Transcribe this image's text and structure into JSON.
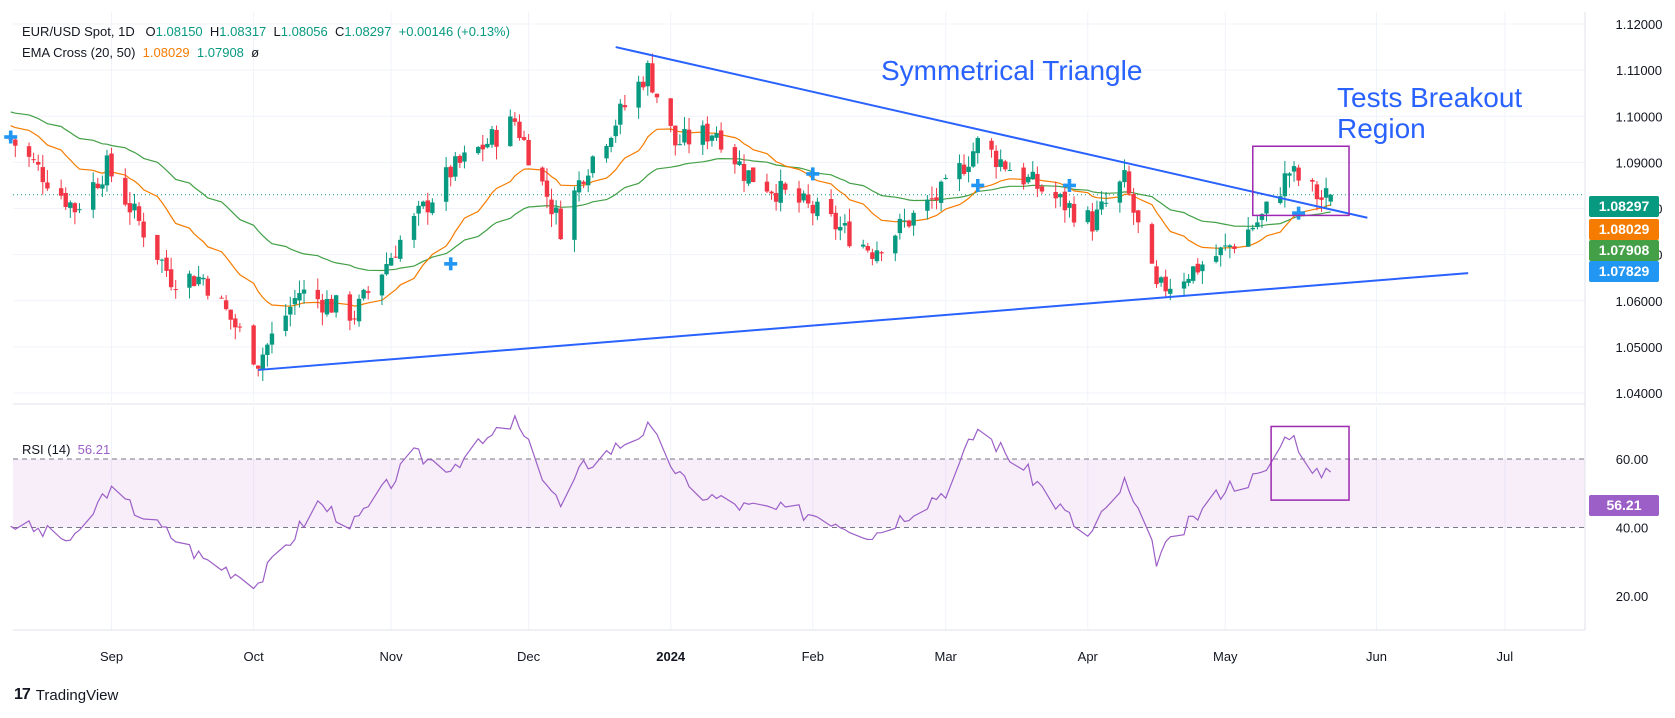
{
  "legend": {
    "title": "EUR/USD Spot, 1D",
    "o_label": "O",
    "o_value": "1.08150",
    "h_label": "H",
    "h_value": "1.08317",
    "l_label": "L",
    "l_value": "1.08056",
    "c_label": "C",
    "c_value": "1.08297",
    "change": "+0.00146 (+0.13%)",
    "ema_label": "EMA Cross (20, 50)",
    "ema20_value": "1.08029",
    "ema50_value": "1.07908",
    "ema_extra": "ø",
    "rsi_label": "RSI (14)",
    "rsi_value": "56.21"
  },
  "annotations": {
    "symmetrical_triangle": "Symmetrical Triangle",
    "breakout_line1": "Tests Breakout",
    "breakout_line2": "Region"
  },
  "price_tags": {
    "close": "1.08297",
    "ema20": "1.08029",
    "ema50": "1.07908",
    "other": "1.07829",
    "rsi": "56.21"
  },
  "colors": {
    "bull": "#089981",
    "bear": "#f23645",
    "ema20": "#f57c00",
    "ema50": "#43a047",
    "trendline": "#2962ff",
    "rsi": "#9c5fc7",
    "box": "#9c27b0",
    "tag_blue": "#2196f3"
  },
  "footer": {
    "logo": "17",
    "brand": "TradingView"
  },
  "chart_data": [
    {
      "type": "candlestick",
      "title": "EUR/USD Spot, 1D",
      "ylim": [
        1.036,
        1.121
      ],
      "y_ticks": [
        "1.12000",
        "1.11000",
        "1.10000",
        "1.09000",
        "1.08000",
        "1.07000",
        "1.06000",
        "1.05000",
        "1.04000"
      ],
      "x_ticks": [
        "Sep",
        "Oct",
        "Nov",
        "Dec",
        "2024",
        "Feb",
        "Mar",
        "Apr",
        "May",
        "Jun",
        "Jul"
      ],
      "close_key_points": [
        [
          "2023-08-10",
          1.095
        ],
        [
          "2023-08-24",
          1.08
        ],
        [
          "2023-08-31",
          1.089
        ],
        [
          "2023-09-14",
          1.065
        ],
        [
          "2023-09-21",
          1.065
        ],
        [
          "2023-10-03",
          1.047
        ],
        [
          "2023-10-12",
          1.062
        ],
        [
          "2023-10-24",
          1.057
        ],
        [
          "2023-11-03",
          1.073
        ],
        [
          "2023-11-14",
          1.088
        ],
        [
          "2023-11-28",
          1.099
        ],
        [
          "2023-12-08",
          1.076
        ],
        [
          "2023-12-13",
          1.088
        ],
        [
          "2023-12-27",
          1.11
        ],
        [
          "2024-01-02",
          1.094
        ],
        [
          "2024-01-11",
          1.097
        ],
        [
          "2024-01-17",
          1.088
        ],
        [
          "2024-02-02",
          1.079
        ],
        [
          "2024-02-14",
          1.071
        ],
        [
          "2024-03-01",
          1.084
        ],
        [
          "2024-03-08",
          1.094
        ],
        [
          "2024-03-19",
          1.086
        ],
        [
          "2024-04-02",
          1.077
        ],
        [
          "2024-04-09",
          1.086
        ],
        [
          "2024-04-16",
          1.062
        ],
        [
          "2024-05-01",
          1.071
        ],
        [
          "2024-05-09",
          1.078
        ],
        [
          "2024-05-15",
          1.088
        ],
        [
          "2024-05-22",
          1.082
        ],
        [
          "2024-05-24",
          1.08297
        ]
      ],
      "ohlc_last": {
        "open": 1.0815,
        "high": 1.08317,
        "low": 1.08056,
        "close": 1.08297
      },
      "ema20_last": 1.08029,
      "ema50_last": 1.07908,
      "trendlines": [
        {
          "name": "upper",
          "from": [
            "2023-12-20",
            1.115
          ],
          "to": [
            "2024-06-01",
            1.078
          ]
        },
        {
          "name": "lower",
          "from": [
            "2023-10-03",
            1.045
          ],
          "to": [
            "2024-06-23",
            1.066
          ]
        }
      ],
      "cross_markers": [
        [
          "2023-08-10",
          1.0955
        ],
        [
          "2023-11-14",
          1.068
        ],
        [
          "2024-02-01",
          1.0875
        ],
        [
          "2024-03-08",
          1.085
        ],
        [
          "2024-03-28",
          1.085
        ],
        [
          "2024-05-17",
          1.079
        ]
      ]
    },
    {
      "type": "line",
      "title": "RSI (14)",
      "ylim": [
        20,
        75
      ],
      "y_ticks": [
        "60.00",
        "40.00",
        "20.00"
      ],
      "band": [
        40,
        60
      ],
      "last": 56.21,
      "key_points": [
        [
          "2023-08-08",
          42
        ],
        [
          "2023-08-24",
          36
        ],
        [
          "2023-08-31",
          51
        ],
        [
          "2023-09-21",
          31
        ],
        [
          "2023-10-03",
          24
        ],
        [
          "2023-10-16",
          47
        ],
        [
          "2023-10-24",
          41
        ],
        [
          "2023-11-06",
          61
        ],
        [
          "2023-11-14",
          58
        ],
        [
          "2023-11-28",
          71
        ],
        [
          "2023-12-08",
          46
        ],
        [
          "2023-12-13",
          58
        ],
        [
          "2023-12-27",
          69
        ],
        [
          "2024-01-05",
          51
        ],
        [
          "2024-01-17",
          46
        ],
        [
          "2024-02-02",
          44
        ],
        [
          "2024-02-14",
          38
        ],
        [
          "2024-03-01",
          51
        ],
        [
          "2024-03-08",
          69
        ],
        [
          "2024-03-19",
          56
        ],
        [
          "2024-04-01",
          37
        ],
        [
          "2024-04-09",
          53
        ],
        [
          "2024-04-16",
          31
        ],
        [
          "2024-05-01",
          52
        ],
        [
          "2024-05-09",
          55
        ],
        [
          "2024-05-15",
          68
        ],
        [
          "2024-05-22",
          54
        ],
        [
          "2024-05-24",
          56.21
        ]
      ]
    }
  ]
}
